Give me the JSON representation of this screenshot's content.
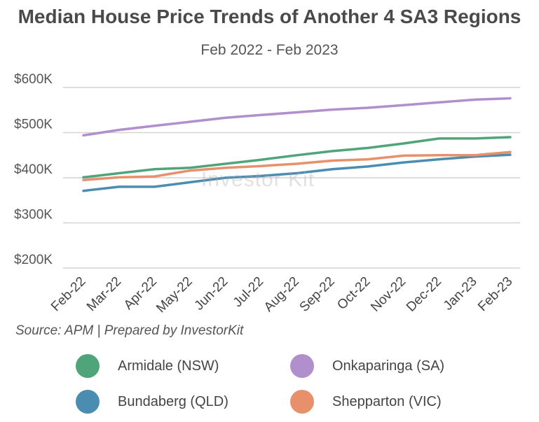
{
  "title": "Median House Price Trends of Another 4 SA3 Regions",
  "subtitle": "Feb 2022 - Feb 2023",
  "source": "Source: APM | Prepared by InvestorKit",
  "watermark": "Investor Kit",
  "chart_data": {
    "type": "line",
    "title": "Median House Price Trends of Another 4 SA3 Regions",
    "subtitle": "Feb 2022 - Feb 2023",
    "categories": [
      "Feb-22",
      "Mar-22",
      "Apr-22",
      "May-22",
      "Jun-22",
      "Jul-22",
      "Aug-22",
      "Sep-22",
      "Oct-22",
      "Nov-22",
      "Dec-22",
      "Jan-23",
      "Feb-23"
    ],
    "ylim": [
      200000,
      600000
    ],
    "yticks": [
      200000,
      300000,
      400000,
      500000,
      600000
    ],
    "ytick_labels": [
      "$200K",
      "$300K",
      "$400K",
      "$500K",
      "$600K"
    ],
    "grid": true,
    "legend_position": "bottom",
    "series": [
      {
        "name": "Armidale (NSW)",
        "color": "#4fa47a",
        "values": [
          401000,
          410000,
          419000,
          422000,
          431000,
          440000,
          450000,
          459000,
          466000,
          476000,
          487000,
          487000,
          490000
        ]
      },
      {
        "name": "Onkaparinga (SA)",
        "color": "#b08fcc",
        "values": [
          494000,
          506000,
          515000,
          524000,
          533000,
          539000,
          545000,
          551000,
          555000,
          561000,
          567000,
          573000,
          576000
        ]
      },
      {
        "name": "Bundaberg (QLD)",
        "color": "#4a8db0",
        "values": [
          371000,
          380000,
          380000,
          390000,
          400000,
          404000,
          410000,
          419000,
          425000,
          434000,
          441000,
          447000,
          451000
        ]
      },
      {
        "name": "Shepparton (VIC)",
        "color": "#e8906c",
        "values": [
          395000,
          401000,
          403000,
          416000,
          422000,
          426000,
          431000,
          438000,
          441000,
          449000,
          450000,
          450000,
          457000
        ]
      }
    ]
  }
}
